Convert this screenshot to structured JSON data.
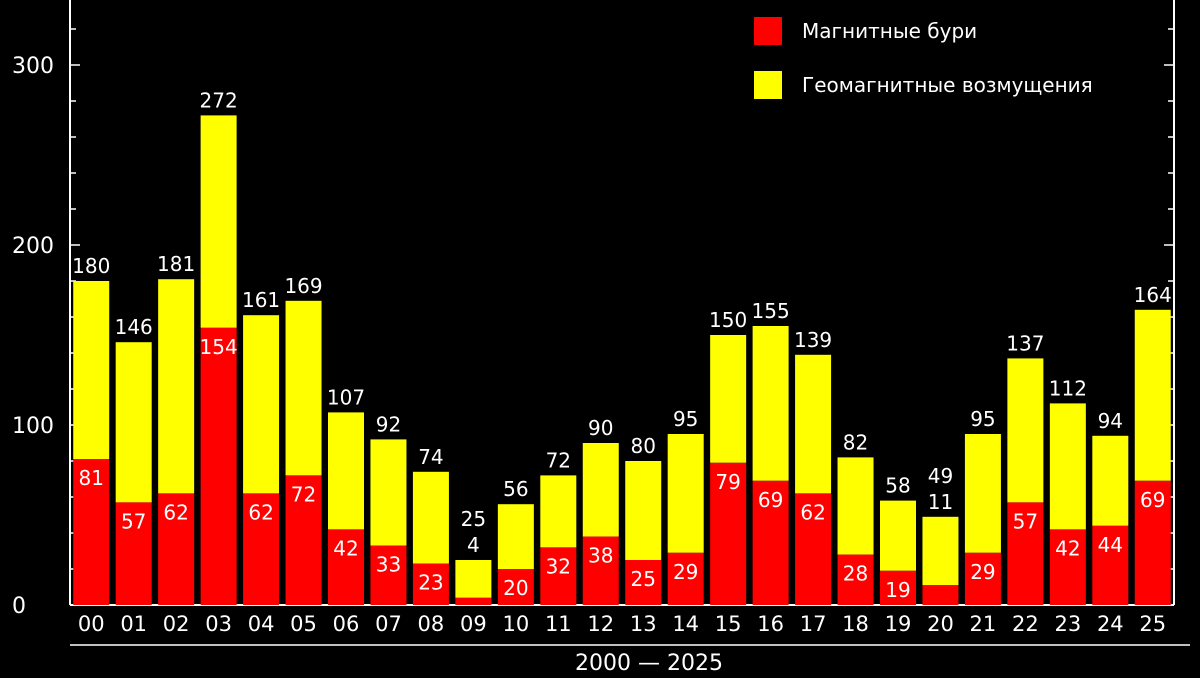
{
  "colors": {
    "storms": "#ff0000",
    "disturbances": "#ffff00",
    "background": "#000000",
    "axis": "#ffffff"
  },
  "chart_data": {
    "type": "bar",
    "stacked": true,
    "title": "",
    "xlabel": "2000 — 2025",
    "ylabel": "",
    "ylim": [
      0,
      350
    ],
    "yticks": [
      0,
      100,
      200,
      300
    ],
    "legend_position": "top-right",
    "categories": [
      "00",
      "01",
      "02",
      "03",
      "04",
      "05",
      "06",
      "07",
      "08",
      "09",
      "10",
      "11",
      "12",
      "13",
      "14",
      "15",
      "16",
      "17",
      "18",
      "19",
      "20",
      "21",
      "22",
      "23",
      "24",
      "25"
    ],
    "series": [
      {
        "name": "Магнитные бури",
        "color": "#ff0000",
        "values": [
          81,
          57,
          62,
          154,
          62,
          72,
          42,
          33,
          23,
          4,
          20,
          32,
          38,
          25,
          29,
          79,
          69,
          62,
          28,
          19,
          11,
          29,
          57,
          42,
          44,
          69
        ]
      },
      {
        "name": "Геомагнитные возмущения",
        "color": "#ffff00",
        "totals": [
          180,
          146,
          181,
          272,
          161,
          169,
          107,
          92,
          74,
          25,
          56,
          72,
          90,
          80,
          95,
          150,
          155,
          139,
          82,
          58,
          49,
          95,
          137,
          112,
          94,
          164
        ]
      }
    ]
  }
}
